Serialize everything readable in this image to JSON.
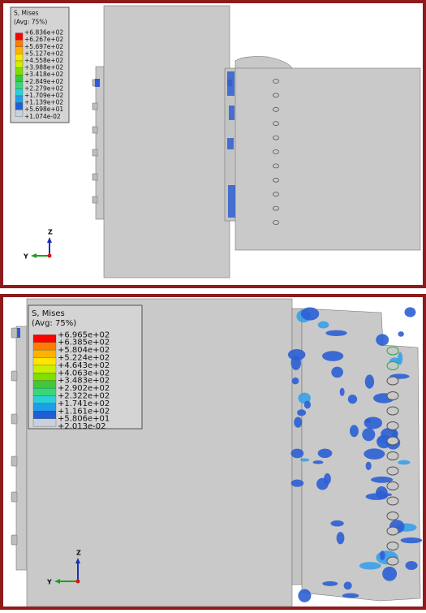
{
  "panels": [
    {
      "legend": {
        "title": "S, Mises",
        "subtitle": "(Avg: 75%)",
        "levels": [
          "+6.836e+02",
          "+6.267e+02",
          "+5.697e+02",
          "+5.127e+02",
          "+4.558e+02",
          "+3.988e+02",
          "+3.418e+02",
          "+2.849e+02",
          "+2.279e+02",
          "+1.709e+02",
          "+1.139e+02",
          "+5.698e+01",
          "+1.074e-02"
        ]
      },
      "axes": {
        "z": "Z",
        "y": "Y"
      }
    },
    {
      "legend": {
        "title": "S, Mises",
        "subtitle": "(Avg: 75%)",
        "levels": [
          "+6.965e+02",
          "+6.385e+02",
          "+5.804e+02",
          "+5.224e+02",
          "+4.643e+02",
          "+4.063e+02",
          "+3.483e+02",
          "+2.902e+02",
          "+2.322e+02",
          "+1.741e+02",
          "+1.161e+02",
          "+5.806e+01",
          "+2.013e-02"
        ]
      },
      "axes": {
        "z": "Z",
        "y": "Y"
      }
    }
  ]
}
